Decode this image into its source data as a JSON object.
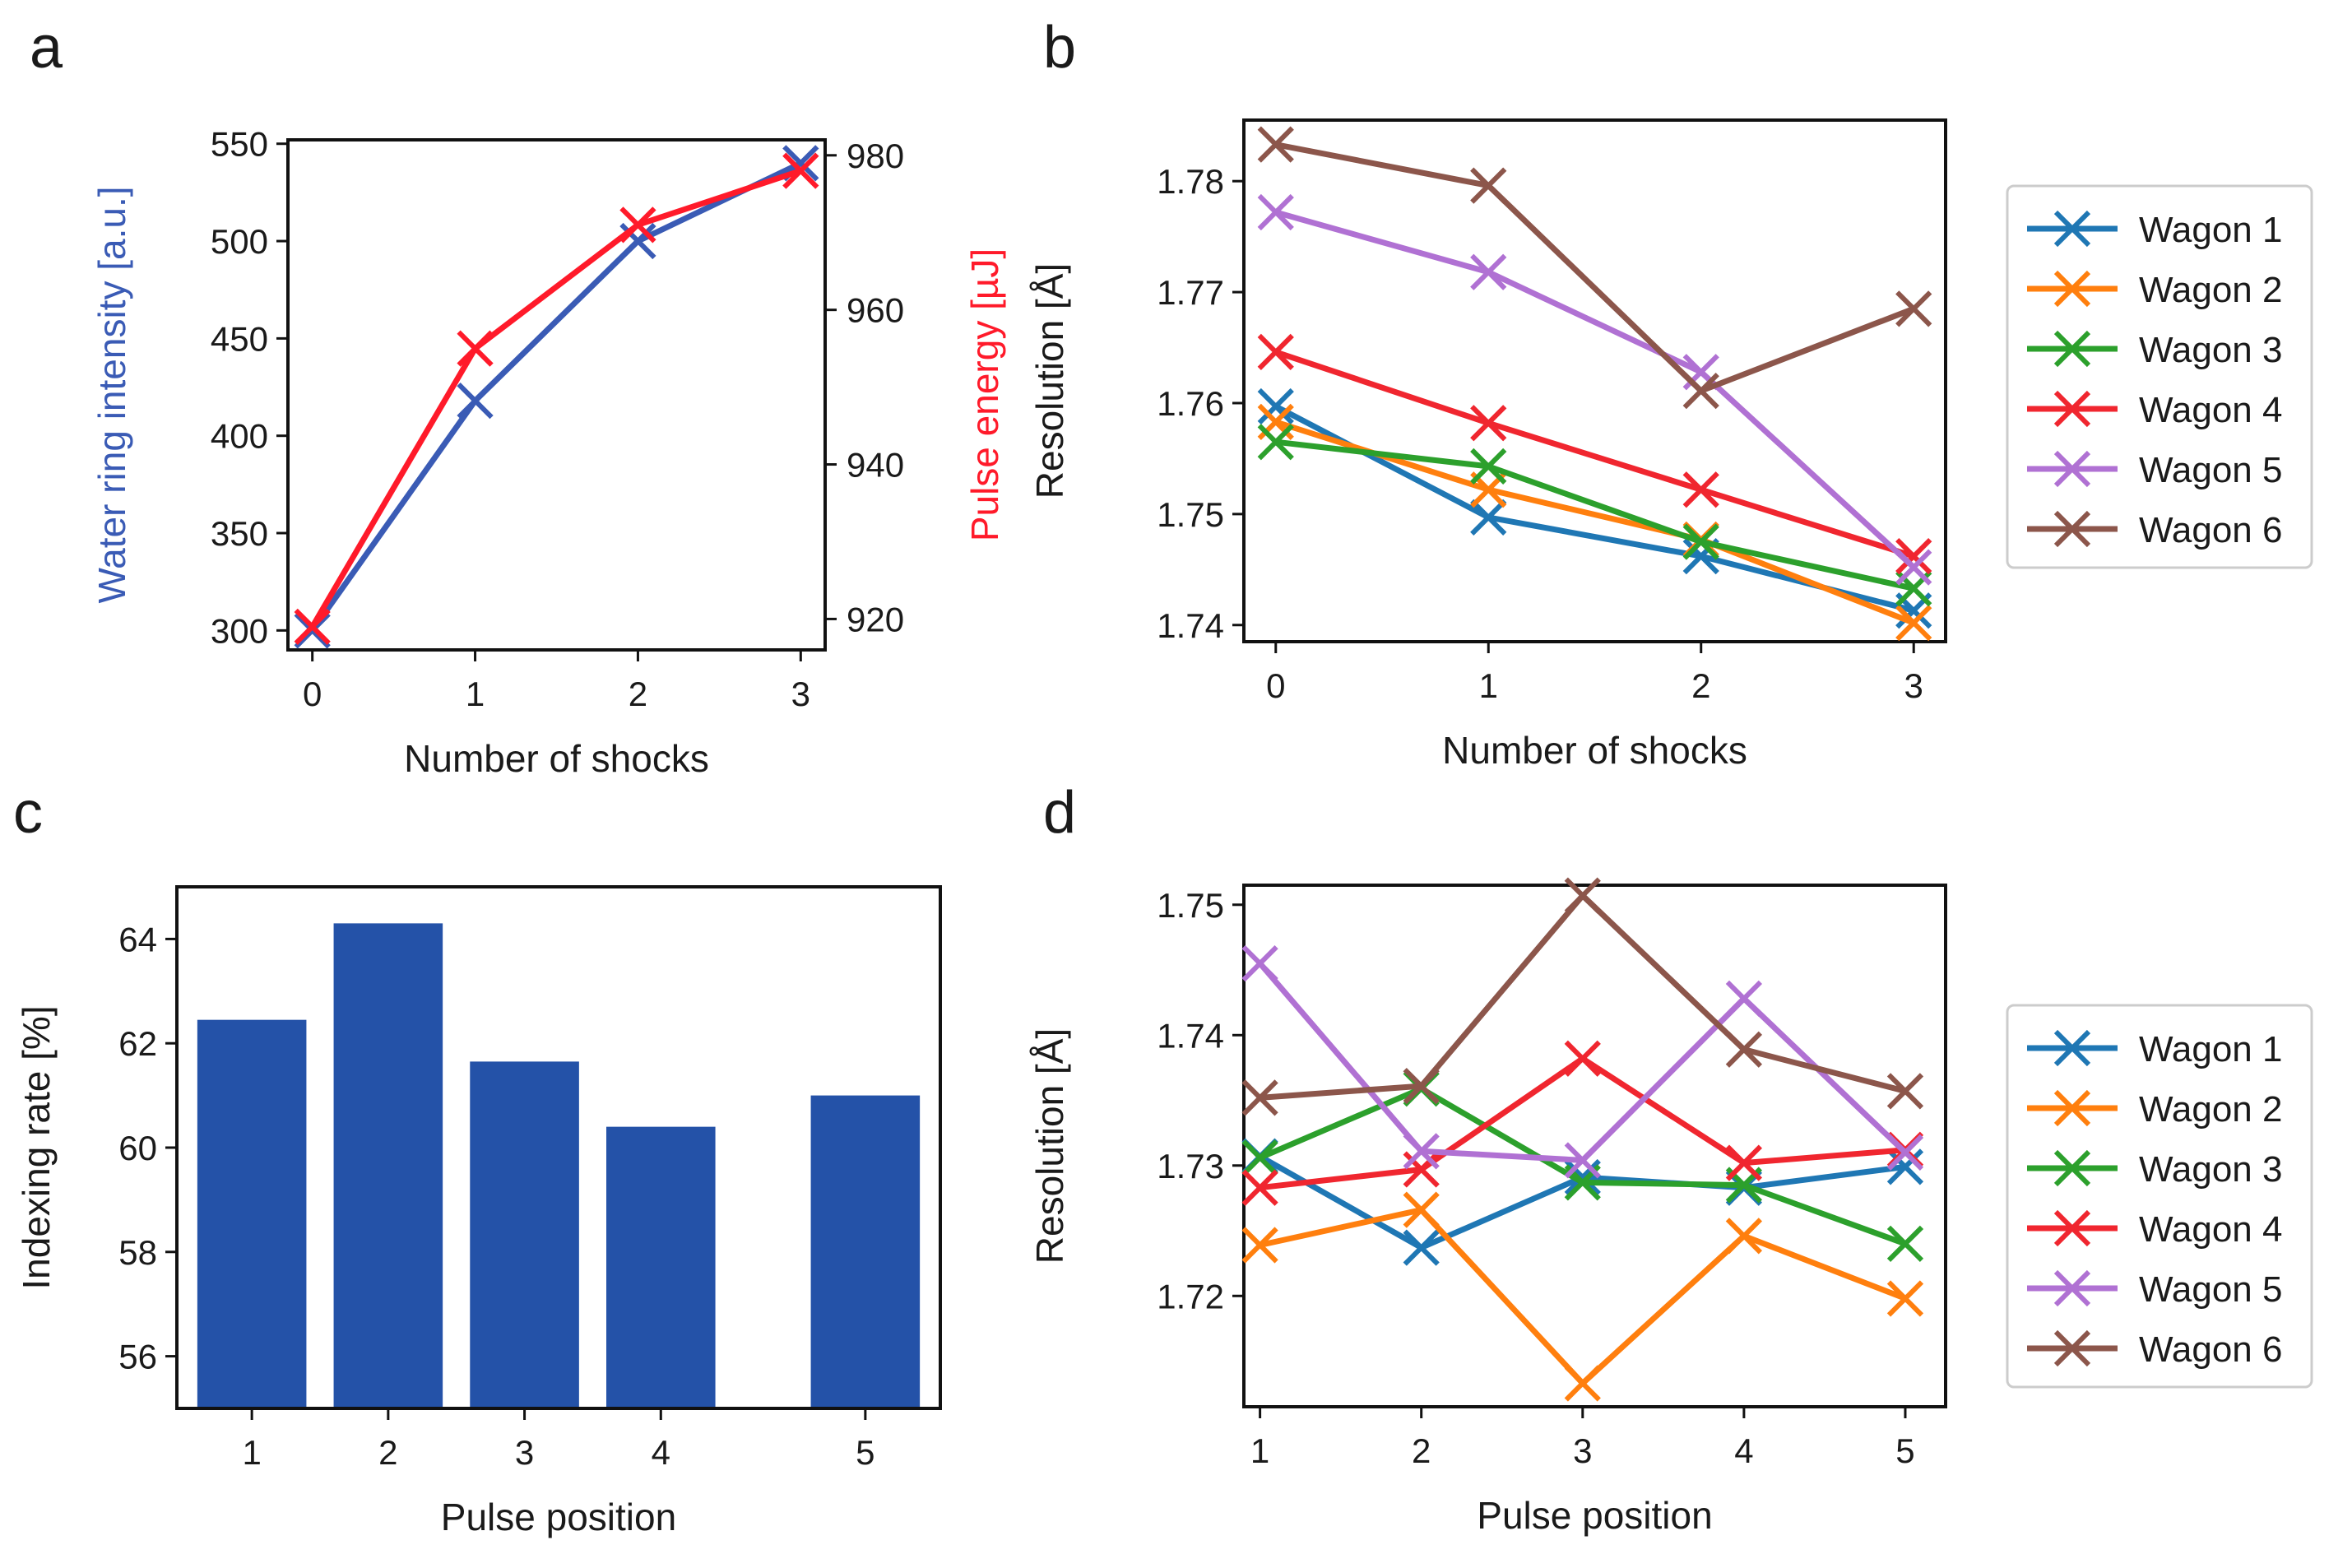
{
  "panel_letters": {
    "a": "a",
    "b": "b",
    "c": "c",
    "d": "d"
  },
  "colors": {
    "blue_line": "#3a5bb5",
    "red_line": "#ff1a2a",
    "bar": "#2452a8",
    "wagon_1": "#1f77b4",
    "wagon_2": "#ff7f0e",
    "wagon_3": "#2ca02c",
    "wagon_4": "#f0262f",
    "wagon_5": "#b071d3",
    "wagon_6": "#8c564b"
  },
  "chart_data": [
    {
      "id": "a",
      "type": "line",
      "title": "",
      "xlabel": "Number of shocks",
      "ylabel": "Water ring intensity [a.u.]",
      "ylabel_right": "Pulse energy [µJ]",
      "xlim": [
        -0.15,
        3.15
      ],
      "xticks": [
        0,
        1,
        2,
        3
      ],
      "ylim": [
        290,
        552
      ],
      "yticks": [
        300,
        350,
        400,
        450,
        500,
        550
      ],
      "ylim_right": [
        916,
        982
      ],
      "yticks_right": [
        920,
        940,
        960,
        980
      ],
      "x": [
        0,
        1,
        2,
        3
      ],
      "series": [
        {
          "name": "Water ring intensity",
          "axis": "left",
          "color": "blue_line",
          "values": [
            300,
            418,
            500,
            540
          ]
        },
        {
          "name": "Pulse energy",
          "axis": "right",
          "color": "red_line",
          "values": [
            919,
            955,
            971,
            978
          ]
        }
      ]
    },
    {
      "id": "b",
      "type": "line",
      "title": "",
      "xlabel": "Number of shocks",
      "ylabel": "Resolution [Å]",
      "xlim": [
        -0.15,
        3.15
      ],
      "xticks": [
        0,
        1,
        2,
        3
      ],
      "ylim": [
        1.7385,
        1.7855
      ],
      "yticks": [
        1.74,
        1.75,
        1.76,
        1.77,
        1.78
      ],
      "x": [
        0,
        1,
        2,
        3
      ],
      "legend_placement": "right",
      "series": [
        {
          "name": "Wagon 1",
          "color": "wagon_1",
          "values": [
            1.7597,
            1.7497,
            1.7462,
            1.7413
          ]
        },
        {
          "name": "Wagon 2",
          "color": "wagon_2",
          "values": [
            1.7583,
            1.7522,
            1.7477,
            1.7402
          ]
        },
        {
          "name": "Wagon 3",
          "color": "wagon_3",
          "values": [
            1.7565,
            1.7543,
            1.7475,
            1.7433
          ]
        },
        {
          "name": "Wagon 4",
          "color": "wagon_4",
          "values": [
            1.7646,
            1.7582,
            1.7522,
            1.7462
          ]
        },
        {
          "name": "Wagon 5",
          "color": "wagon_5",
          "values": [
            1.7772,
            1.7718,
            1.7628,
            1.7452
          ]
        },
        {
          "name": "Wagon 6",
          "color": "wagon_6",
          "values": [
            1.7833,
            1.7796,
            1.7611,
            1.7685
          ]
        }
      ]
    },
    {
      "id": "c",
      "type": "bar",
      "title": "",
      "xlabel": "Pulse position",
      "ylabel": "Indexing rate [%]",
      "categories": [
        "1",
        "2",
        "3",
        "4",
        "5"
      ],
      "x": [
        1,
        2,
        3,
        4,
        5.5
      ],
      "xlim": [
        0.45,
        6.05
      ],
      "values": [
        62.45,
        64.3,
        61.65,
        60.4,
        61.0
      ],
      "ylim": [
        55.0,
        65.0
      ],
      "yticks": [
        56,
        58,
        60,
        62,
        64
      ],
      "color": "bar"
    },
    {
      "id": "d",
      "type": "line",
      "title": "",
      "xlabel": "Pulse position",
      "ylabel": "Resolution [Å]",
      "xlim": [
        0.9,
        5.25
      ],
      "xticks": [
        1,
        2,
        3,
        4,
        5
      ],
      "ylim": [
        1.7115,
        1.7515
      ],
      "yticks": [
        1.72,
        1.73,
        1.74,
        1.75
      ],
      "x": [
        1,
        2,
        3,
        4,
        5
      ],
      "legend_placement": "right",
      "series": [
        {
          "name": "Wagon 1",
          "color": "wagon_1",
          "values": [
            1.7307,
            1.7237,
            1.7291,
            1.7283,
            1.7299
          ]
        },
        {
          "name": "Wagon 2",
          "color": "wagon_2",
          "values": [
            1.7239,
            1.7266,
            1.7133,
            1.7246,
            1.7198
          ]
        },
        {
          "name": "Wagon 3",
          "color": "wagon_3",
          "values": [
            1.7306,
            1.7359,
            1.7287,
            1.7285,
            1.724
          ]
        },
        {
          "name": "Wagon 4",
          "color": "wagon_4",
          "values": [
            1.7283,
            1.7297,
            1.7382,
            1.7302,
            1.7312
          ]
        },
        {
          "name": "Wagon 5",
          "color": "wagon_5",
          "values": [
            1.7455,
            1.7311,
            1.7304,
            1.7428,
            1.731
          ]
        },
        {
          "name": "Wagon 6",
          "color": "wagon_6",
          "values": [
            1.7352,
            1.7361,
            1.7507,
            1.7389,
            1.7357
          ]
        }
      ]
    }
  ]
}
